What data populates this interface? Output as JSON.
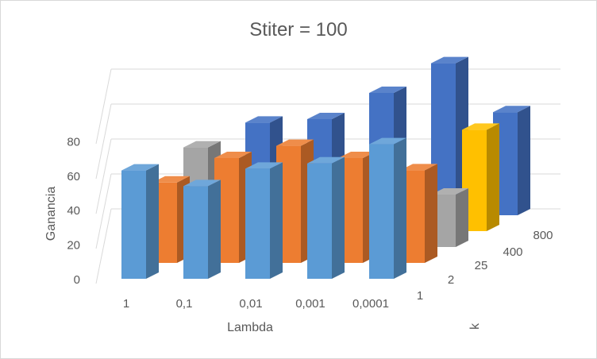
{
  "chart_data": {
    "type": "bar",
    "subtype": "3d-column",
    "title": "Stiter = 100",
    "xlabel": "Lambda",
    "ylabel": "Ganancia",
    "zlabel": "k",
    "categories": [
      "1",
      "0,1",
      "0,01",
      "0,001",
      "0,0001"
    ],
    "y_ticks": [
      "0",
      "20",
      "40",
      "60",
      "80"
    ],
    "ylim": [
      0,
      80
    ],
    "gridlines": true,
    "legend": "none",
    "series": [
      {
        "name": "1",
        "color": "#5b9bd5",
        "values": [
          62,
          53,
          63,
          66,
          77
        ]
      },
      {
        "name": "2",
        "color": "#ed7d31",
        "values": [
          46,
          60,
          67,
          60,
          53
        ]
      },
      {
        "name": "25",
        "color": "#a5a5a5",
        "values": [
          57,
          null,
          null,
          null,
          30
        ]
      },
      {
        "name": "400",
        "color": "#ffc000",
        "values": [
          null,
          null,
          null,
          null,
          58
        ]
      },
      {
        "name": "800",
        "color": "#4472c4",
        "values": [
          53,
          55,
          70,
          87,
          59
        ]
      }
    ]
  }
}
